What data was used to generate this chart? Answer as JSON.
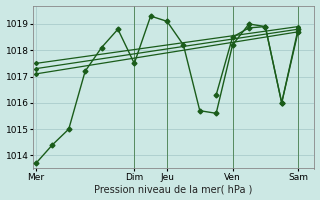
{
  "bg_color": "#cce8e4",
  "grid_color": "#aacccc",
  "line_color": "#1a5c1a",
  "xlabel": "Pression niveau de la mer( hPa )",
  "ylim": [
    1013.5,
    1019.7
  ],
  "yticks": [
    1014,
    1015,
    1016,
    1017,
    1018,
    1019
  ],
  "xtick_labels": [
    "Mer",
    "Dim",
    "Jeu",
    "Ven",
    "Sam"
  ],
  "xtick_positions": [
    0,
    3,
    4,
    6,
    8
  ],
  "xlim": [
    -0.1,
    8.5
  ],
  "series": [
    {
      "x": [
        0,
        0.5,
        1.0,
        1.5,
        2.0,
        2.5,
        3.0,
        3.5,
        4.0,
        4.5,
        5.0,
        5.5,
        6.0,
        6.5,
        7.0,
        7.5,
        8.0
      ],
      "y": [
        1013.7,
        1014.4,
        1015.0,
        1017.2,
        1018.1,
        1018.8,
        1017.5,
        1019.3,
        1019.1,
        1018.2,
        1015.7,
        1015.6,
        1018.2,
        1019.0,
        1018.9,
        1016.0,
        1018.7
      ],
      "marker": "D",
      "markersize": 2.5,
      "linewidth": 1.0
    },
    {
      "x": [
        0,
        8.0
      ],
      "y": [
        1017.1,
        1018.7
      ],
      "marker": "D",
      "markersize": 2.0,
      "linewidth": 0.9
    },
    {
      "x": [
        0,
        8.0
      ],
      "y": [
        1017.3,
        1018.8
      ],
      "marker": "D",
      "markersize": 2.0,
      "linewidth": 0.9
    },
    {
      "x": [
        0,
        8.0
      ],
      "y": [
        1017.5,
        1018.9
      ],
      "marker": "D",
      "markersize": 2.0,
      "linewidth": 0.9
    },
    {
      "x": [
        5.5,
        6.0,
        6.5,
        7.0,
        7.5,
        8.0
      ],
      "y": [
        1016.3,
        1018.5,
        1018.85,
        1018.9,
        1016.0,
        1018.8
      ],
      "marker": "D",
      "markersize": 2.5,
      "linewidth": 1.0
    }
  ],
  "vlines": [
    3.0,
    4.0,
    6.0,
    8.0
  ],
  "vline_color": "#2d6b2d",
  "vline_lw": 0.6,
  "xlabel_fontsize": 7,
  "tick_fontsize": 6.5
}
